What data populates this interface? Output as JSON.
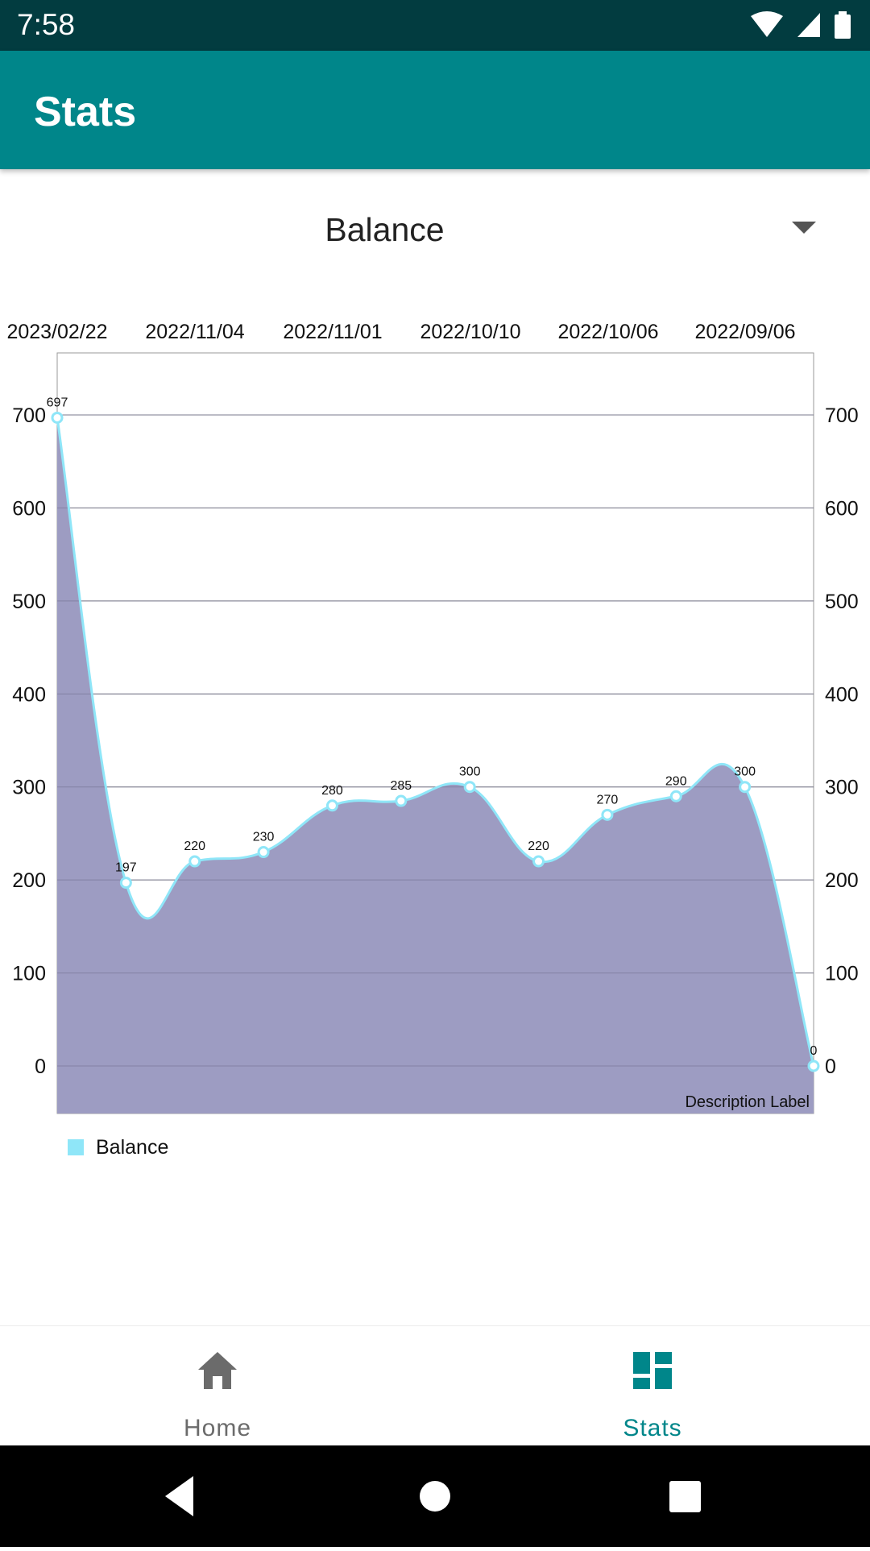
{
  "status_bar": {
    "time": "7:58",
    "icons": [
      "wifi-icon",
      "signal-icon",
      "battery-icon"
    ]
  },
  "app_bar": {
    "title": "Stats"
  },
  "dropdown": {
    "selected": "Balance"
  },
  "chart_data": {
    "type": "area",
    "x": [
      "2023/02/22",
      "",
      "2022/11/04",
      "",
      "2022/11/01",
      "",
      "2022/10/10",
      "",
      "2022/10/06",
      "",
      "2022/09/06",
      ""
    ],
    "x_tick_labels": [
      "2023/02/22",
      "2022/11/04",
      "2022/11/01",
      "2022/10/10",
      "2022/10/06",
      "2022/09/06"
    ],
    "series": [
      {
        "name": "Balance",
        "values": [
          697,
          197,
          220,
          230,
          280,
          285,
          300,
          220,
          270,
          290,
          300,
          0
        ],
        "line_color": "#8fe6f8",
        "fill_color": "#9d9cc2"
      }
    ],
    "y_ticks": [
      0,
      100,
      200,
      300,
      400,
      500,
      600,
      700
    ],
    "ylim": [
      -70,
      745
    ],
    "grid": true,
    "dual_y_axis": true,
    "description": "Description Label",
    "legend": "bottom-left"
  },
  "legend": {
    "label": "Balance",
    "color": "#8fe6f8"
  },
  "bottom_nav": {
    "items": [
      {
        "label": "Home",
        "icon": "home-icon",
        "active": false
      },
      {
        "label": "Stats",
        "icon": "dashboard-icon",
        "active": true
      }
    ]
  },
  "system_nav": {
    "buttons": [
      "back-button",
      "home-button",
      "recents-button"
    ]
  },
  "colors": {
    "primary": "#00868a",
    "status_bar": "#023c40",
    "accent": "#8fe6f8",
    "fill": "#9d9cc2"
  }
}
